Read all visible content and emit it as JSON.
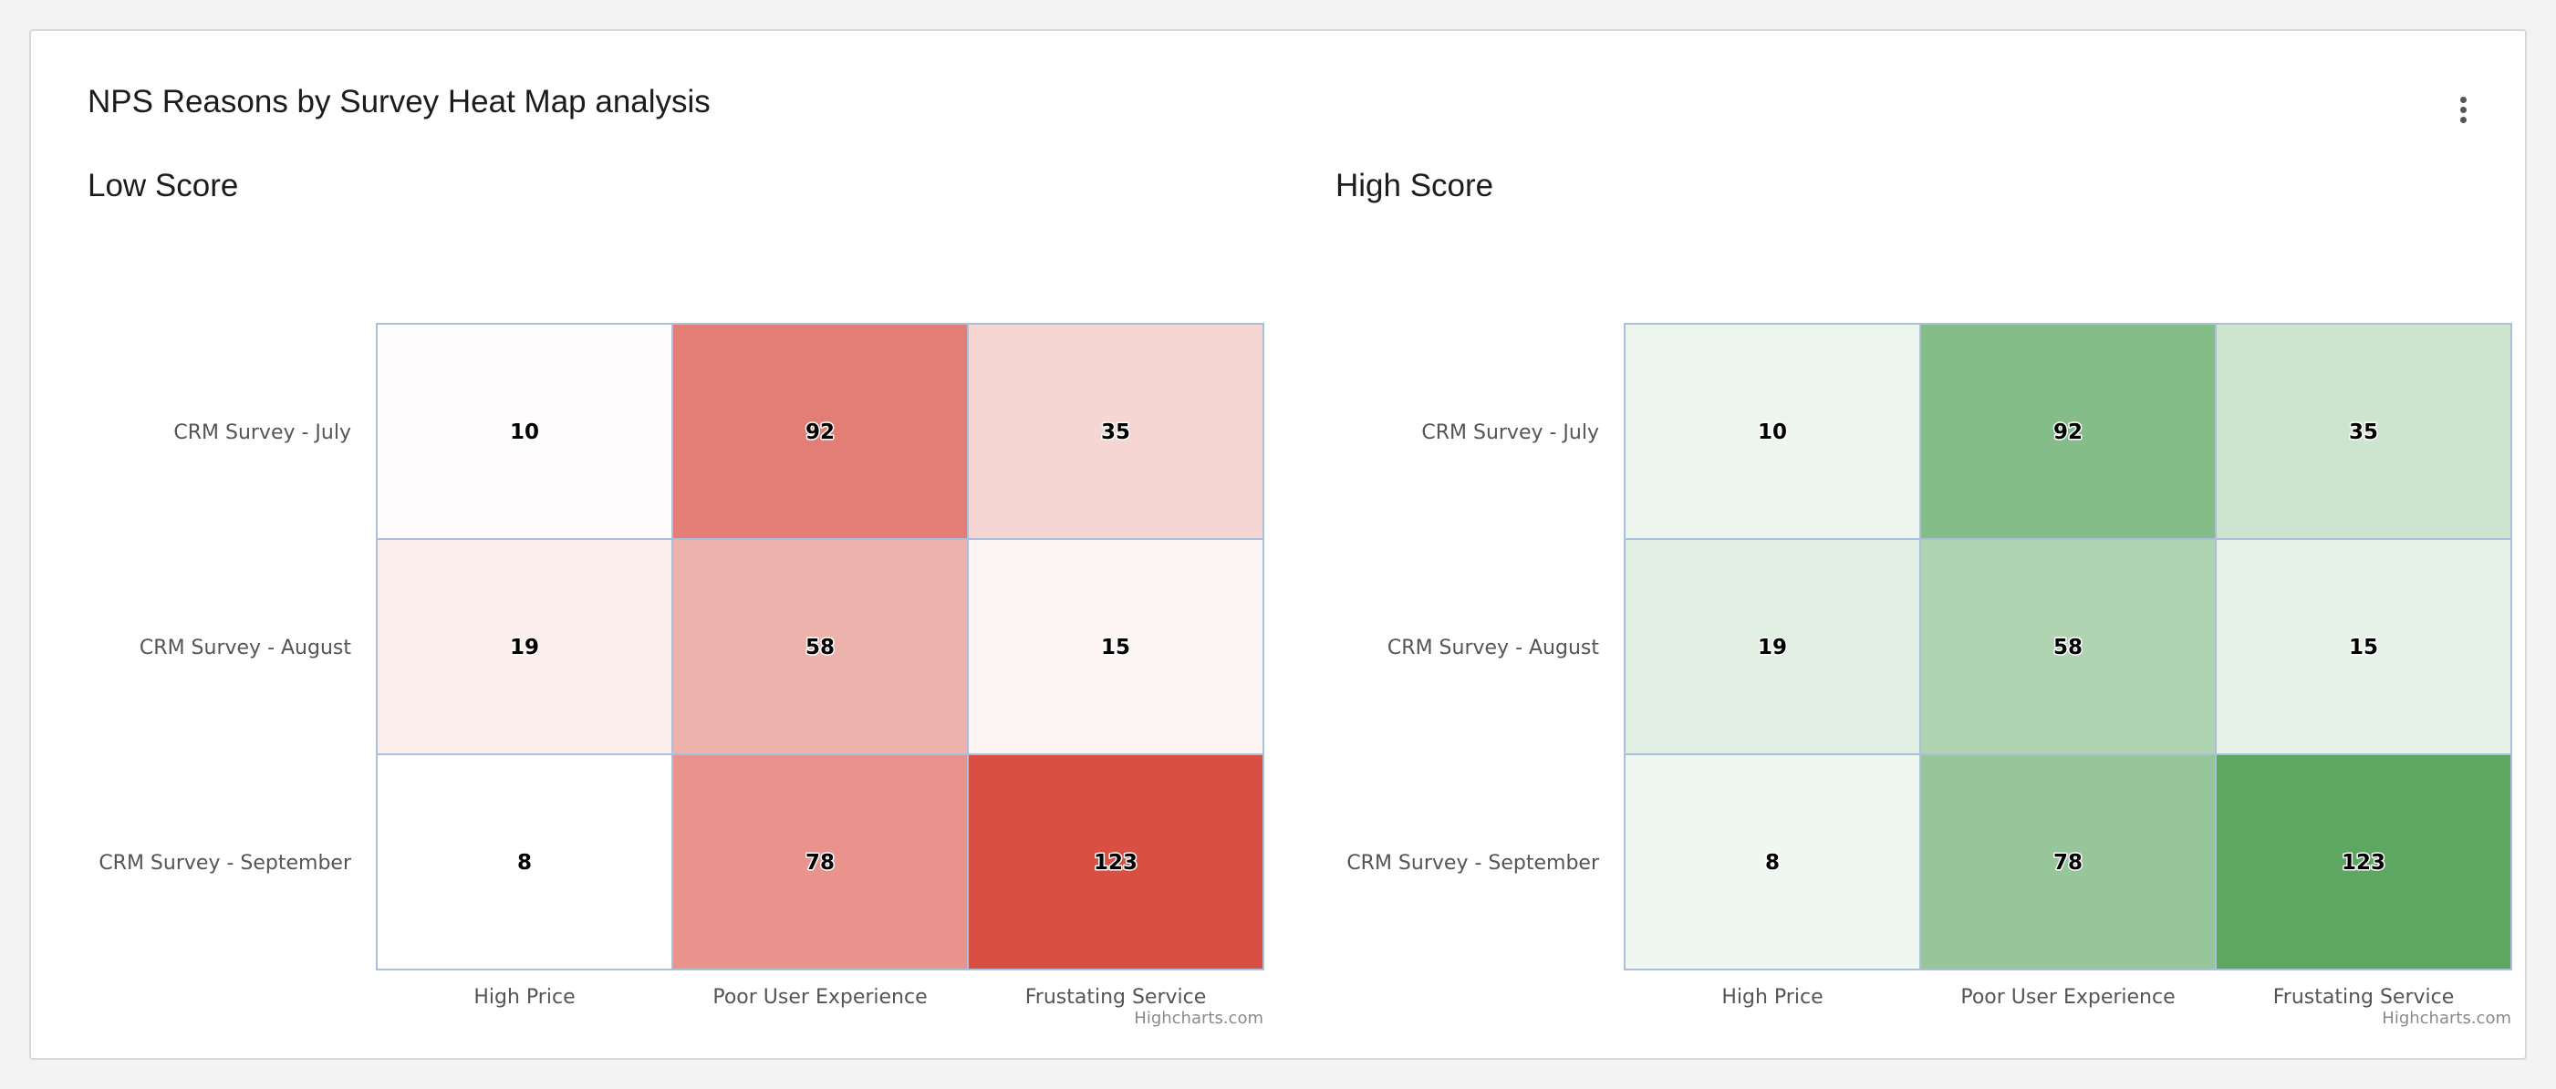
{
  "widget": {
    "title": "NPS Reasons by Survey Heat Map analysis",
    "menu_icon": "more-vertical-icon"
  },
  "chart_data": [
    {
      "type": "heatmap",
      "title": "Low Score",
      "x_categories": [
        "High Price",
        "Poor User Experience",
        "Frustating Service"
      ],
      "y_categories": [
        "CRM Survey - July",
        "CRM Survey - August",
        "CRM Survey - September"
      ],
      "values": [
        [
          10,
          92,
          35
        ],
        [
          19,
          58,
          15
        ],
        [
          8,
          78,
          123
        ]
      ],
      "color_min": "#ffffff",
      "color_max": "#d94f43",
      "credits": "Highcharts.com"
    },
    {
      "type": "heatmap",
      "title": "High Score",
      "x_categories": [
        "High Price",
        "Poor User Experience",
        "Frustating Service"
      ],
      "y_categories": [
        "CRM Survey - July",
        "CRM Survey - August",
        "CRM Survey - September"
      ],
      "values": [
        [
          10,
          92,
          35
        ],
        [
          19,
          58,
          15
        ],
        [
          8,
          78,
          123
        ]
      ],
      "color_min": "#eff7f0",
      "color_max": "#5ea762",
      "credits": "Highcharts.com"
    }
  ]
}
